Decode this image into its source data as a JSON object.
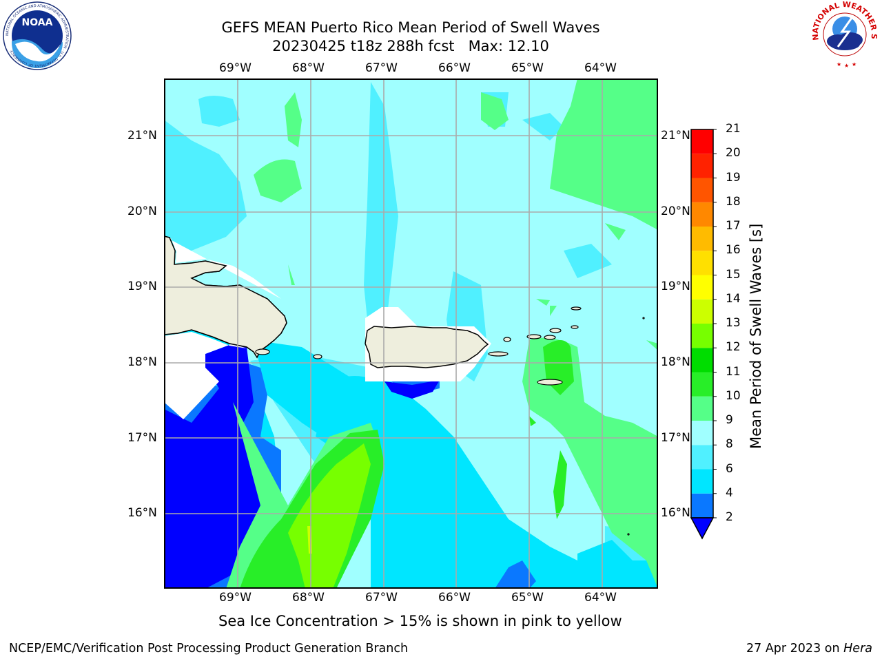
{
  "title": {
    "line1": "GEFS MEAN Puerto Rico Mean Period of Swell Waves",
    "line2": "20230425 t18z 288h fcst   Max: 12.10"
  },
  "map": {
    "lon_labels": [
      "69°W",
      "68°W",
      "67°W",
      "66°W",
      "65°W",
      "64°W"
    ],
    "lat_labels": [
      "21°N",
      "20°N",
      "19°N",
      "18°N",
      "17°N",
      "16°N"
    ],
    "note": "Sea Ice Concentration > 15% is shown in pink to yellow"
  },
  "colorbar": {
    "title": "Mean Period of Swell Waves [s]",
    "levels": [
      "2",
      "4",
      "6",
      "8",
      "9",
      "10",
      "11",
      "12",
      "13",
      "14",
      "15",
      "16",
      "17",
      "18",
      "19",
      "20",
      "21"
    ],
    "colors": [
      "#0000ff",
      "#0a78ff",
      "#00e6ff",
      "#50f0ff",
      "#a0ffff",
      "#55ff88",
      "#28ee28",
      "#00dd00",
      "#77ff00",
      "#ccff00",
      "#ffff00",
      "#ffe000",
      "#ffbb00",
      "#ff8800",
      "#ff5500",
      "#ff2200",
      "#ff0000"
    ],
    "extend_color": "#0000ff"
  },
  "footer": {
    "left": "NCEP/EMC/Verification Post Processing Product Generation Branch",
    "right_prefix": "27 Apr 2023 on ",
    "right_machine": "Hera"
  },
  "logos": {
    "left": "NOAA",
    "left_ring": "NATIONAL OCEANIC AND ATMOSPHERIC ADMINISTRATION · U.S. DEPARTMENT OF COMMERCE",
    "right_ring": "NATIONAL WEATHER SERVICE"
  }
}
